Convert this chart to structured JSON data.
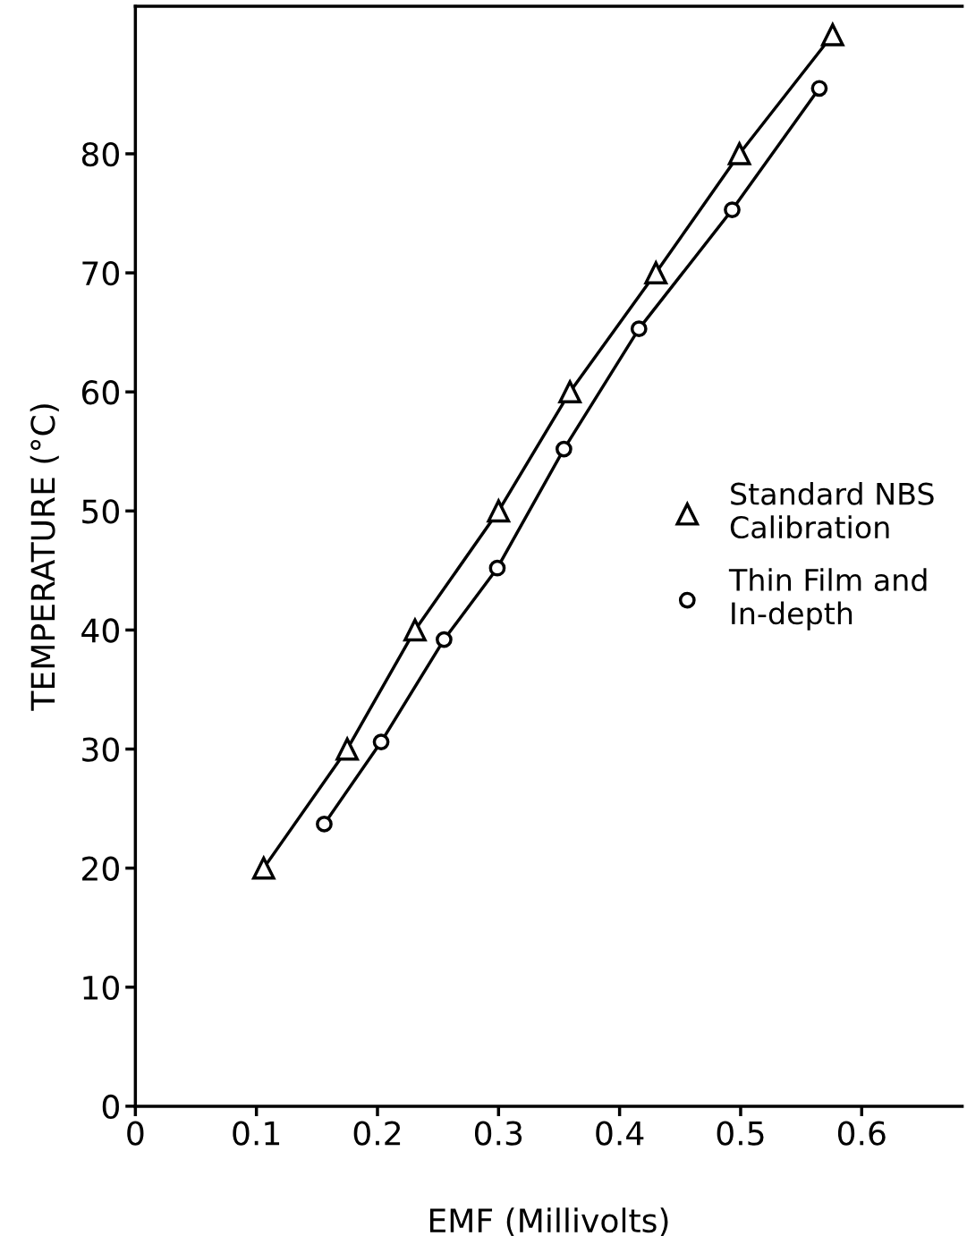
{
  "chart_data": {
    "type": "line",
    "xlabel": "EMF (Millivolts)",
    "ylabel": "TEMPERATURE (°C)",
    "xlim": [
      0,
      0.683
    ],
    "ylim": [
      0,
      92.4
    ],
    "xticks": [
      0,
      0.1,
      0.2,
      0.3,
      0.4,
      0.5,
      0.6
    ],
    "yticks": [
      0,
      10,
      20,
      30,
      40,
      50,
      60,
      70,
      80
    ],
    "grid": false,
    "legend": "right",
    "series": [
      {
        "name": "Standard NBS\nCalibration",
        "color": "#000000",
        "marker": "triangle",
        "x": [
          0.106,
          0.175,
          0.231,
          0.3,
          0.359,
          0.43,
          0.499,
          0.576
        ],
        "values": [
          20,
          30,
          40,
          50,
          60,
          70,
          80,
          90
        ]
      },
      {
        "name": "Thin Film and\nIn-depth",
        "color": "#000000",
        "marker": "circle",
        "x": [
          0.156,
          0.203,
          0.255,
          0.299,
          0.354,
          0.416,
          0.493,
          0.565
        ],
        "values": [
          23.7,
          30.6,
          39.2,
          45.2,
          55.2,
          65.3,
          75.3,
          85.5
        ]
      }
    ]
  }
}
